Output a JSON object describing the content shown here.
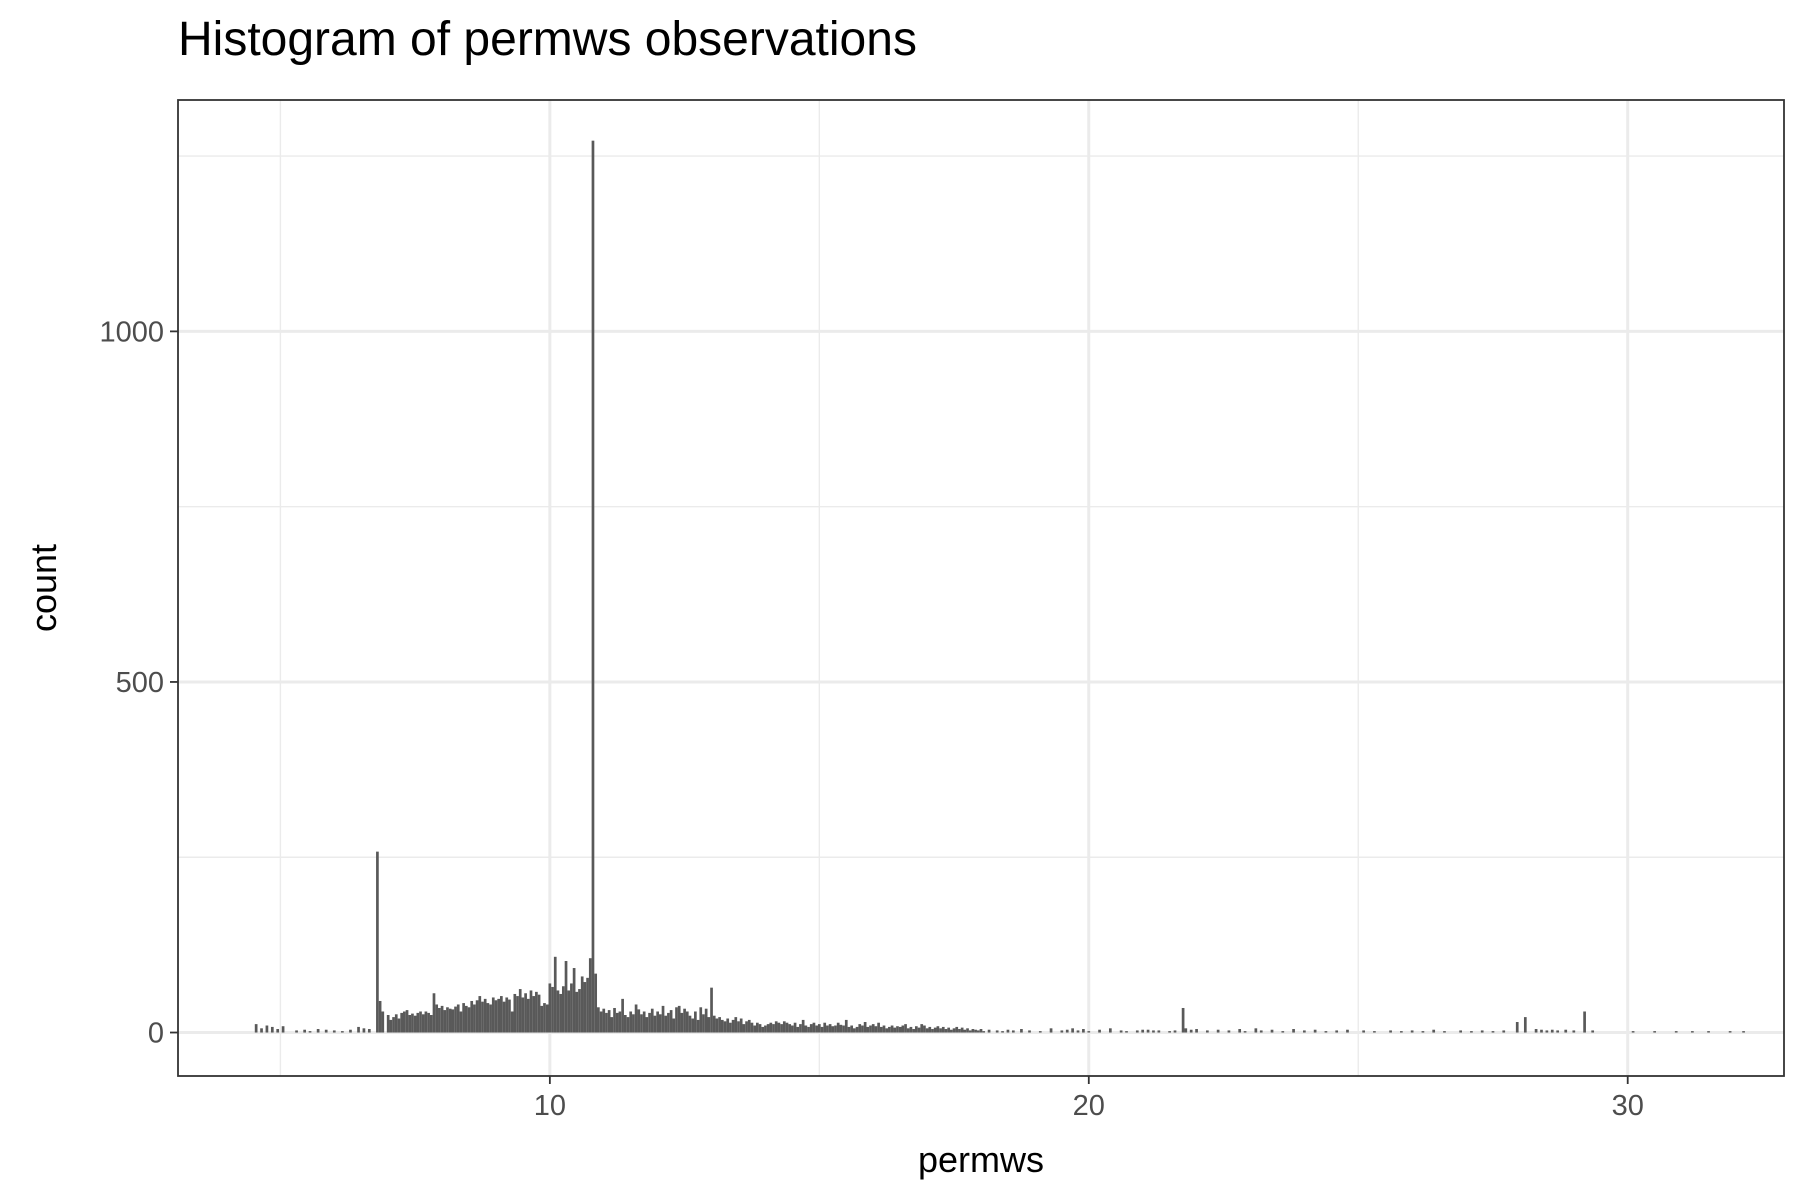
{
  "chart_data": {
    "type": "bar",
    "title": "Histogram of permws observations",
    "xlabel": "permws",
    "ylabel": "count",
    "xlim": [
      3.1,
      32.9
    ],
    "ylim": [
      -62,
      1330
    ],
    "x_ticks": [
      10,
      20,
      30
    ],
    "x_tick_labels": [
      "10",
      "20",
      "30"
    ],
    "x_minor_ticks": [
      5,
      15,
      25
    ],
    "y_ticks": [
      0,
      500,
      1000
    ],
    "y_tick_labels": [
      "0",
      "500",
      "1000"
    ],
    "y_minor_ticks": [
      250,
      750,
      1250
    ],
    "bin_width": 0.05,
    "grid": true,
    "bar_color": "#595959",
    "bars": [
      [
        4.55,
        12
      ],
      [
        4.65,
        6
      ],
      [
        4.75,
        10
      ],
      [
        4.85,
        8
      ],
      [
        4.95,
        5
      ],
      [
        5.05,
        9
      ],
      [
        5.3,
        3
      ],
      [
        5.45,
        4
      ],
      [
        5.55,
        2
      ],
      [
        5.7,
        5
      ],
      [
        5.85,
        4
      ],
      [
        6.0,
        3
      ],
      [
        6.15,
        2
      ],
      [
        6.3,
        4
      ],
      [
        6.45,
        8
      ],
      [
        6.55,
        6
      ],
      [
        6.65,
        5
      ],
      [
        6.8,
        258
      ],
      [
        6.85,
        45
      ],
      [
        6.9,
        30
      ],
      [
        7.0,
        25
      ],
      [
        7.05,
        18
      ],
      [
        7.1,
        22
      ],
      [
        7.15,
        26
      ],
      [
        7.2,
        20
      ],
      [
        7.25,
        28
      ],
      [
        7.3,
        30
      ],
      [
        7.35,
        32
      ],
      [
        7.4,
        25
      ],
      [
        7.45,
        27
      ],
      [
        7.5,
        24
      ],
      [
        7.55,
        28
      ],
      [
        7.6,
        30
      ],
      [
        7.65,
        26
      ],
      [
        7.7,
        30
      ],
      [
        7.75,
        28
      ],
      [
        7.8,
        25
      ],
      [
        7.85,
        56
      ],
      [
        7.9,
        40
      ],
      [
        7.95,
        35
      ],
      [
        8.0,
        38
      ],
      [
        8.05,
        32
      ],
      [
        8.1,
        36
      ],
      [
        8.15,
        34
      ],
      [
        8.2,
        33
      ],
      [
        8.25,
        37
      ],
      [
        8.3,
        40
      ],
      [
        8.35,
        30
      ],
      [
        8.4,
        42
      ],
      [
        8.45,
        38
      ],
      [
        8.5,
        36
      ],
      [
        8.55,
        45
      ],
      [
        8.6,
        40
      ],
      [
        8.65,
        46
      ],
      [
        8.7,
        52
      ],
      [
        8.75,
        44
      ],
      [
        8.8,
        48
      ],
      [
        8.85,
        42
      ],
      [
        8.9,
        40
      ],
      [
        8.95,
        50
      ],
      [
        9.0,
        46
      ],
      [
        9.05,
        48
      ],
      [
        9.1,
        52
      ],
      [
        9.15,
        44
      ],
      [
        9.2,
        50
      ],
      [
        9.25,
        47
      ],
      [
        9.3,
        30
      ],
      [
        9.35,
        55
      ],
      [
        9.4,
        52
      ],
      [
        9.45,
        62
      ],
      [
        9.5,
        50
      ],
      [
        9.55,
        56
      ],
      [
        9.6,
        48
      ],
      [
        9.65,
        60
      ],
      [
        9.7,
        52
      ],
      [
        9.75,
        58
      ],
      [
        9.8,
        54
      ],
      [
        9.85,
        38
      ],
      [
        9.9,
        42
      ],
      [
        9.95,
        40
      ],
      [
        10.0,
        70
      ],
      [
        10.05,
        65
      ],
      [
        10.1,
        108
      ],
      [
        10.15,
        60
      ],
      [
        10.2,
        55
      ],
      [
        10.25,
        66
      ],
      [
        10.3,
        102
      ],
      [
        10.35,
        60
      ],
      [
        10.4,
        70
      ],
      [
        10.45,
        92
      ],
      [
        10.5,
        58
      ],
      [
        10.55,
        62
      ],
      [
        10.6,
        80
      ],
      [
        10.65,
        72
      ],
      [
        10.7,
        78
      ],
      [
        10.75,
        106
      ],
      [
        10.8,
        1272
      ],
      [
        10.85,
        84
      ],
      [
        10.9,
        36
      ],
      [
        10.95,
        30
      ],
      [
        11.0,
        34
      ],
      [
        11.05,
        28
      ],
      [
        11.1,
        32
      ],
      [
        11.15,
        22
      ],
      [
        11.2,
        35
      ],
      [
        11.25,
        28
      ],
      [
        11.3,
        30
      ],
      [
        11.35,
        48
      ],
      [
        11.4,
        25
      ],
      [
        11.45,
        22
      ],
      [
        11.5,
        30
      ],
      [
        11.55,
        26
      ],
      [
        11.6,
        40
      ],
      [
        11.65,
        33
      ],
      [
        11.7,
        26
      ],
      [
        11.75,
        30
      ],
      [
        11.8,
        22
      ],
      [
        11.85,
        28
      ],
      [
        11.9,
        34
      ],
      [
        11.95,
        24
      ],
      [
        12.0,
        30
      ],
      [
        12.05,
        26
      ],
      [
        12.1,
        38
      ],
      [
        12.15,
        24
      ],
      [
        12.2,
        28
      ],
      [
        12.25,
        32
      ],
      [
        12.3,
        20
      ],
      [
        12.35,
        36
      ],
      [
        12.4,
        38
      ],
      [
        12.45,
        28
      ],
      [
        12.5,
        34
      ],
      [
        12.55,
        30
      ],
      [
        12.6,
        24
      ],
      [
        12.65,
        20
      ],
      [
        12.7,
        30
      ],
      [
        12.75,
        18
      ],
      [
        12.8,
        36
      ],
      [
        12.85,
        26
      ],
      [
        12.9,
        34
      ],
      [
        12.95,
        22
      ],
      [
        13.0,
        64
      ],
      [
        13.05,
        24
      ],
      [
        13.1,
        20
      ],
      [
        13.15,
        22
      ],
      [
        13.2,
        18
      ],
      [
        13.25,
        16
      ],
      [
        13.3,
        20
      ],
      [
        13.35,
        14
      ],
      [
        13.4,
        18
      ],
      [
        13.45,
        22
      ],
      [
        13.5,
        16
      ],
      [
        13.55,
        20
      ],
      [
        13.6,
        12
      ],
      [
        13.65,
        16
      ],
      [
        13.7,
        18
      ],
      [
        13.75,
        14
      ],
      [
        13.8,
        10
      ],
      [
        13.85,
        14
      ],
      [
        13.9,
        12
      ],
      [
        13.95,
        8
      ],
      [
        14.0,
        10
      ],
      [
        14.05,
        12
      ],
      [
        14.1,
        14
      ],
      [
        14.15,
        12
      ],
      [
        14.2,
        16
      ],
      [
        14.25,
        14
      ],
      [
        14.3,
        12
      ],
      [
        14.35,
        16
      ],
      [
        14.4,
        14
      ],
      [
        14.45,
        12
      ],
      [
        14.5,
        10
      ],
      [
        14.55,
        14
      ],
      [
        14.6,
        8
      ],
      [
        14.65,
        12
      ],
      [
        14.7,
        18
      ],
      [
        14.75,
        10
      ],
      [
        14.8,
        8
      ],
      [
        14.85,
        12
      ],
      [
        14.9,
        14
      ],
      [
        14.95,
        10
      ],
      [
        15.0,
        12
      ],
      [
        15.05,
        8
      ],
      [
        15.1,
        14
      ],
      [
        15.15,
        10
      ],
      [
        15.2,
        12
      ],
      [
        15.25,
        9
      ],
      [
        15.3,
        10
      ],
      [
        15.35,
        14
      ],
      [
        15.4,
        11
      ],
      [
        15.45,
        10
      ],
      [
        15.5,
        18
      ],
      [
        15.55,
        8
      ],
      [
        15.6,
        10
      ],
      [
        15.65,
        6
      ],
      [
        15.7,
        8
      ],
      [
        15.75,
        12
      ],
      [
        15.8,
        10
      ],
      [
        15.85,
        15
      ],
      [
        15.9,
        8
      ],
      [
        15.95,
        10
      ],
      [
        16.0,
        12
      ],
      [
        16.05,
        9
      ],
      [
        16.1,
        14
      ],
      [
        16.15,
        8
      ],
      [
        16.2,
        10
      ],
      [
        16.25,
        6
      ],
      [
        16.3,
        8
      ],
      [
        16.35,
        10
      ],
      [
        16.4,
        7
      ],
      [
        16.45,
        9
      ],
      [
        16.5,
        8
      ],
      [
        16.55,
        10
      ],
      [
        16.6,
        12
      ],
      [
        16.65,
        6
      ],
      [
        16.7,
        8
      ],
      [
        16.75,
        5
      ],
      [
        16.8,
        9
      ],
      [
        16.85,
        7
      ],
      [
        16.9,
        12
      ],
      [
        16.95,
        10
      ],
      [
        17.0,
        6
      ],
      [
        17.05,
        8
      ],
      [
        17.1,
        5
      ],
      [
        17.15,
        7
      ],
      [
        17.2,
        9
      ],
      [
        17.25,
        6
      ],
      [
        17.3,
        8
      ],
      [
        17.35,
        5
      ],
      [
        17.4,
        7
      ],
      [
        17.45,
        4
      ],
      [
        17.5,
        6
      ],
      [
        17.55,
        8
      ],
      [
        17.6,
        5
      ],
      [
        17.65,
        7
      ],
      [
        17.7,
        4
      ],
      [
        17.75,
        6
      ],
      [
        17.8,
        3
      ],
      [
        17.85,
        5
      ],
      [
        17.9,
        4
      ],
      [
        17.95,
        3
      ],
      [
        18.0,
        5
      ],
      [
        18.05,
        2
      ],
      [
        18.15,
        4
      ],
      [
        18.3,
        3
      ],
      [
        18.4,
        2
      ],
      [
        18.5,
        4
      ],
      [
        18.6,
        3
      ],
      [
        18.75,
        5
      ],
      [
        18.9,
        3
      ],
      [
        19.1,
        2
      ],
      [
        19.3,
        6
      ],
      [
        19.5,
        3
      ],
      [
        19.6,
        4
      ],
      [
        19.7,
        6
      ],
      [
        19.8,
        3
      ],
      [
        19.9,
        5
      ],
      [
        20.0,
        2
      ],
      [
        20.2,
        4
      ],
      [
        20.4,
        6
      ],
      [
        20.6,
        3
      ],
      [
        20.7,
        2
      ],
      [
        20.9,
        3
      ],
      [
        21.0,
        4
      ],
      [
        21.1,
        4
      ],
      [
        21.2,
        3
      ],
      [
        21.3,
        3
      ],
      [
        21.5,
        2
      ],
      [
        21.6,
        3
      ],
      [
        21.75,
        35
      ],
      [
        21.8,
        6
      ],
      [
        21.9,
        4
      ],
      [
        22.0,
        5
      ],
      [
        22.2,
        3
      ],
      [
        22.4,
        4
      ],
      [
        22.6,
        3
      ],
      [
        22.8,
        5
      ],
      [
        22.9,
        2
      ],
      [
        23.1,
        6
      ],
      [
        23.2,
        3
      ],
      [
        23.4,
        4
      ],
      [
        23.6,
        2
      ],
      [
        23.8,
        5
      ],
      [
        24.0,
        3
      ],
      [
        24.2,
        4
      ],
      [
        24.4,
        2
      ],
      [
        24.6,
        3
      ],
      [
        24.8,
        4
      ],
      [
        25.1,
        3
      ],
      [
        25.3,
        2
      ],
      [
        25.6,
        3
      ],
      [
        25.8,
        2
      ],
      [
        26.0,
        3
      ],
      [
        26.2,
        2
      ],
      [
        26.4,
        4
      ],
      [
        26.6,
        2
      ],
      [
        26.9,
        3
      ],
      [
        27.1,
        2
      ],
      [
        27.3,
        3
      ],
      [
        27.5,
        2
      ],
      [
        27.7,
        3
      ],
      [
        27.95,
        15
      ],
      [
        28.1,
        22
      ],
      [
        28.3,
        5
      ],
      [
        28.4,
        4
      ],
      [
        28.5,
        3
      ],
      [
        28.6,
        4
      ],
      [
        28.7,
        3
      ],
      [
        28.85,
        4
      ],
      [
        29.0,
        3
      ],
      [
        29.2,
        30
      ],
      [
        29.35,
        3
      ],
      [
        30.1,
        2
      ],
      [
        30.5,
        2
      ],
      [
        30.9,
        2
      ],
      [
        31.2,
        2
      ],
      [
        31.5,
        2
      ],
      [
        31.9,
        2
      ],
      [
        32.15,
        2
      ]
    ]
  }
}
